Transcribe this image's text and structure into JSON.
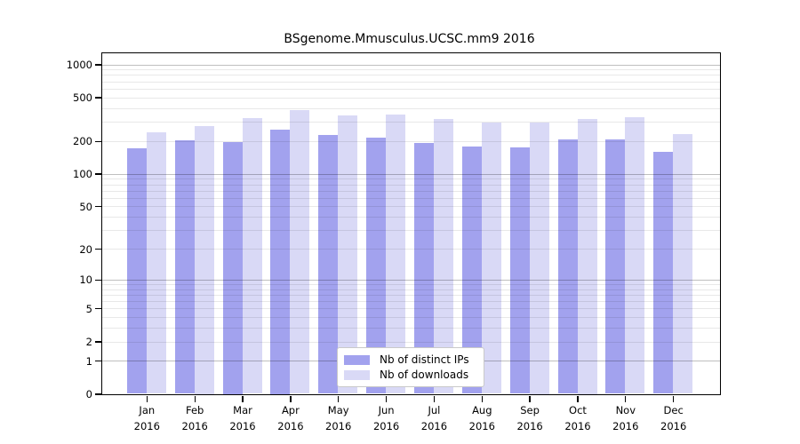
{
  "title": "BSgenome.Mmusculus.UCSC.mm9 2016",
  "chart_data": {
    "type": "bar",
    "title": "BSgenome.Mmusculus.UCSC.mm9 2016",
    "categories": [
      "Jan",
      "Feb",
      "Mar",
      "Apr",
      "May",
      "Jun",
      "Jul",
      "Aug",
      "Sep",
      "Oct",
      "Nov",
      "Dec"
    ],
    "category_year": "2016",
    "series": [
      {
        "name": "Nb of distinct IPs",
        "key": "distinct-ips",
        "color": "#a2a2ee",
        "values": [
          171,
          203,
          195,
          256,
          225,
          216,
          190,
          177,
          173,
          207,
          206,
          160
        ]
      },
      {
        "name": "Nb of downloads",
        "key": "downloads",
        "color": "#d9d9f6",
        "values": [
          240,
          276,
          325,
          383,
          340,
          351,
          318,
          295,
          297,
          320,
          327,
          230
        ]
      }
    ],
    "yscale": "log1p",
    "yticks": [
      0,
      1,
      2,
      5,
      10,
      20,
      50,
      100,
      200,
      500,
      1000
    ],
    "ylim": [
      0,
      1280
    ],
    "grid": true,
    "legend_position": "lower-center",
    "axis_color": "#000000",
    "grid_major_color": "rgba(0,0,0,0.25)",
    "grid_minor_color": "rgba(0,0,0,0.09)"
  }
}
